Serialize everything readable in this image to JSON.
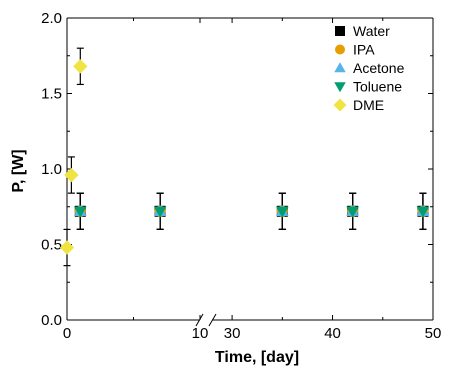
{
  "chart_data": {
    "type": "scatter",
    "title": "",
    "xlabel": "Time, [day]",
    "ylabel": "P, [W]",
    "x_axis": {
      "broken": true,
      "segments": [
        {
          "range": [
            0,
            10
          ],
          "ticks": [
            0,
            10
          ],
          "tick_labels": [
            "0",
            "10"
          ]
        },
        {
          "range": [
            28,
            50
          ],
          "ticks": [
            30,
            40,
            50
          ],
          "tick_labels": [
            "30",
            "40",
            "50"
          ]
        }
      ]
    },
    "ylim": [
      0,
      2.0
    ],
    "yticks": [
      0.0,
      0.5,
      1.0,
      1.5,
      2.0
    ],
    "ytick_labels": [
      "0.0",
      "0.5",
      "1.0",
      "1.5",
      "2.0"
    ],
    "legend_position": "top-right",
    "grid": false,
    "series": [
      {
        "name": "Water",
        "marker": "square",
        "color": "#000000",
        "points": [
          {
            "x": 1,
            "y": 0.72,
            "err": 0.12
          },
          {
            "x": 7,
            "y": 0.72,
            "err": 0.12
          },
          {
            "x": 35,
            "y": 0.72,
            "err": 0.12
          },
          {
            "x": 42,
            "y": 0.72,
            "err": 0.12
          },
          {
            "x": 49,
            "y": 0.72,
            "err": 0.12
          }
        ]
      },
      {
        "name": "IPA",
        "marker": "circle",
        "color": "#E69F00",
        "points": [
          {
            "x": 1,
            "y": 0.72,
            "err": 0.12
          },
          {
            "x": 7,
            "y": 0.72,
            "err": 0.12
          },
          {
            "x": 35,
            "y": 0.72,
            "err": 0.12
          },
          {
            "x": 42,
            "y": 0.72,
            "err": 0.12
          },
          {
            "x": 49,
            "y": 0.72,
            "err": 0.12
          }
        ]
      },
      {
        "name": "Acetone",
        "marker": "triangle-up",
        "color": "#56B4E9",
        "points": [
          {
            "x": 1,
            "y": 0.72,
            "err": 0.12
          },
          {
            "x": 7,
            "y": 0.72,
            "err": 0.12
          },
          {
            "x": 35,
            "y": 0.72,
            "err": 0.12
          },
          {
            "x": 42,
            "y": 0.72,
            "err": 0.12
          },
          {
            "x": 49,
            "y": 0.72,
            "err": 0.12
          }
        ]
      },
      {
        "name": "Toluene",
        "marker": "triangle-down",
        "color": "#009E73",
        "points": [
          {
            "x": 1,
            "y": 0.72,
            "err": 0.12
          },
          {
            "x": 7,
            "y": 0.72,
            "err": 0.12
          },
          {
            "x": 35,
            "y": 0.72,
            "err": 0.12
          },
          {
            "x": 42,
            "y": 0.72,
            "err": 0.12
          },
          {
            "x": 49,
            "y": 0.72,
            "err": 0.12
          }
        ]
      },
      {
        "name": "DME",
        "marker": "diamond",
        "color": "#F0E442",
        "points": [
          {
            "x": 0,
            "y": 0.48,
            "err": 0.12
          },
          {
            "x": 0.33,
            "y": 0.96,
            "err": 0.12
          },
          {
            "x": 1,
            "y": 1.68,
            "err": 0.12
          }
        ]
      }
    ]
  }
}
